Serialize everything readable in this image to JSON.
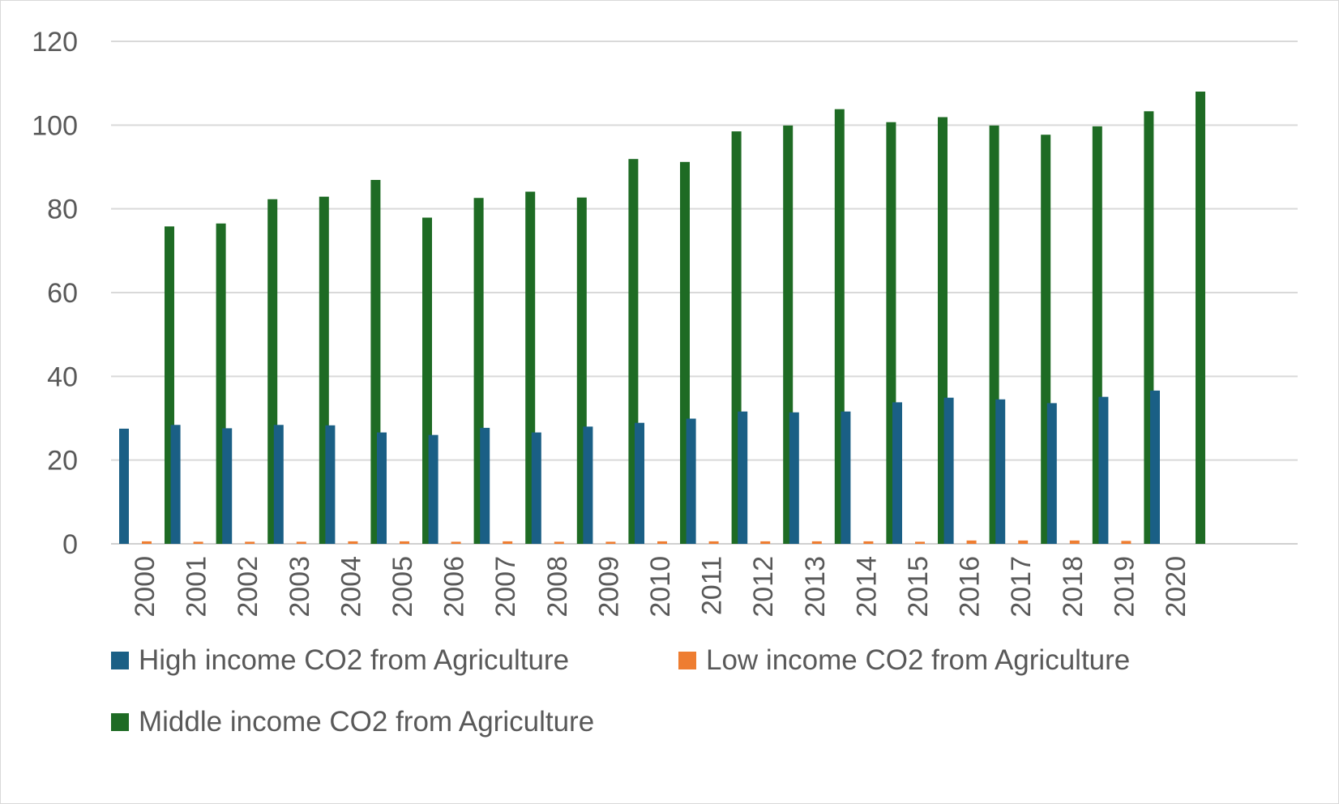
{
  "chart_data": {
    "type": "bar",
    "title": "",
    "xlabel": "",
    "ylabel": "",
    "ylim": [
      0,
      120
    ],
    "yticks": [
      0,
      20,
      40,
      60,
      80,
      100,
      120
    ],
    "grid": true,
    "legend_position": "bottom",
    "categories": [
      "2000",
      "2001",
      "2002",
      "2003",
      "2004",
      "2005",
      "2006",
      "2007",
      "2008",
      "2009",
      "2010",
      "2011",
      "2012",
      "2013",
      "2014",
      "2015",
      "2016",
      "2017",
      "2018",
      "2019",
      "2020"
    ],
    "series": [
      {
        "name": "High income CO2 from Agriculture",
        "color": "#1a5f85",
        "values": [
          27.5,
          28.4,
          27.6,
          28.4,
          28.3,
          26.6,
          26.0,
          27.7,
          26.6,
          28.0,
          28.9,
          29.9,
          31.6,
          31.4,
          31.6,
          33.8,
          34.9,
          34.5,
          33.6,
          35.1,
          36.6
        ]
      },
      {
        "name": "Low income CO2 from Agriculture",
        "color": "#ee7d31",
        "values": [
          0.6,
          0.5,
          0.5,
          0.5,
          0.6,
          0.6,
          0.5,
          0.6,
          0.5,
          0.5,
          0.6,
          0.6,
          0.6,
          0.6,
          0.6,
          0.5,
          0.8,
          0.8,
          0.8,
          0.7,
          null
        ]
      },
      {
        "name": "Middle income CO2 from Agriculture",
        "color": "#1e6b24",
        "values": [
          75.8,
          76.5,
          82.3,
          82.9,
          86.9,
          77.9,
          82.6,
          84.1,
          82.7,
          91.9,
          91.2,
          98.5,
          99.9,
          103.8,
          100.7,
          101.9,
          99.9,
          97.7,
          99.7,
          103.3,
          108.0
        ]
      }
    ]
  }
}
